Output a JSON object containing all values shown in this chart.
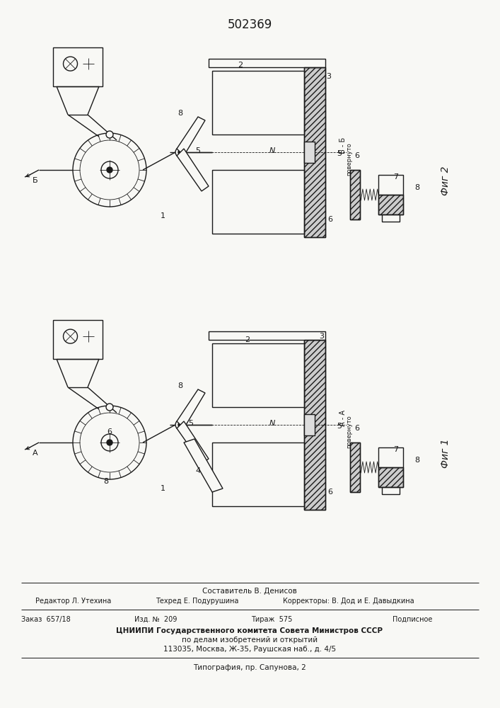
{
  "patent_number": "502369",
  "background_color": "#f8f8f5",
  "line_color": "#1a1a1a",
  "fig_width": 7.07,
  "fig_height": 10.0,
  "footer": {
    "composer": "Составитель В. Денисов",
    "editor": "Редактор Л. Утехина",
    "techred": "Техред Е. Подурушина",
    "correctors": "Корректоры: В. Дод и Е. Давыдкина",
    "order": "Заказ  657/18",
    "issue": "Изд. №  209",
    "circulation": "Тираж  575",
    "subscription": "Подписное",
    "org": "ЦНИИПИ Государственного комитета Совета Министров СССР",
    "org2": "по делам изобретений и открытий",
    "address": "113035, Москва, Ж-35, Раушская наб., д. 4/5",
    "print_house": "Типография, пр. Сапунова, 2"
  },
  "fig2_label": "Фиг 2",
  "fig1_label": "Фиг 1",
  "fig2_section": "Б - Б\nповернуто",
  "fig1_section": "А - А\nповернуто"
}
